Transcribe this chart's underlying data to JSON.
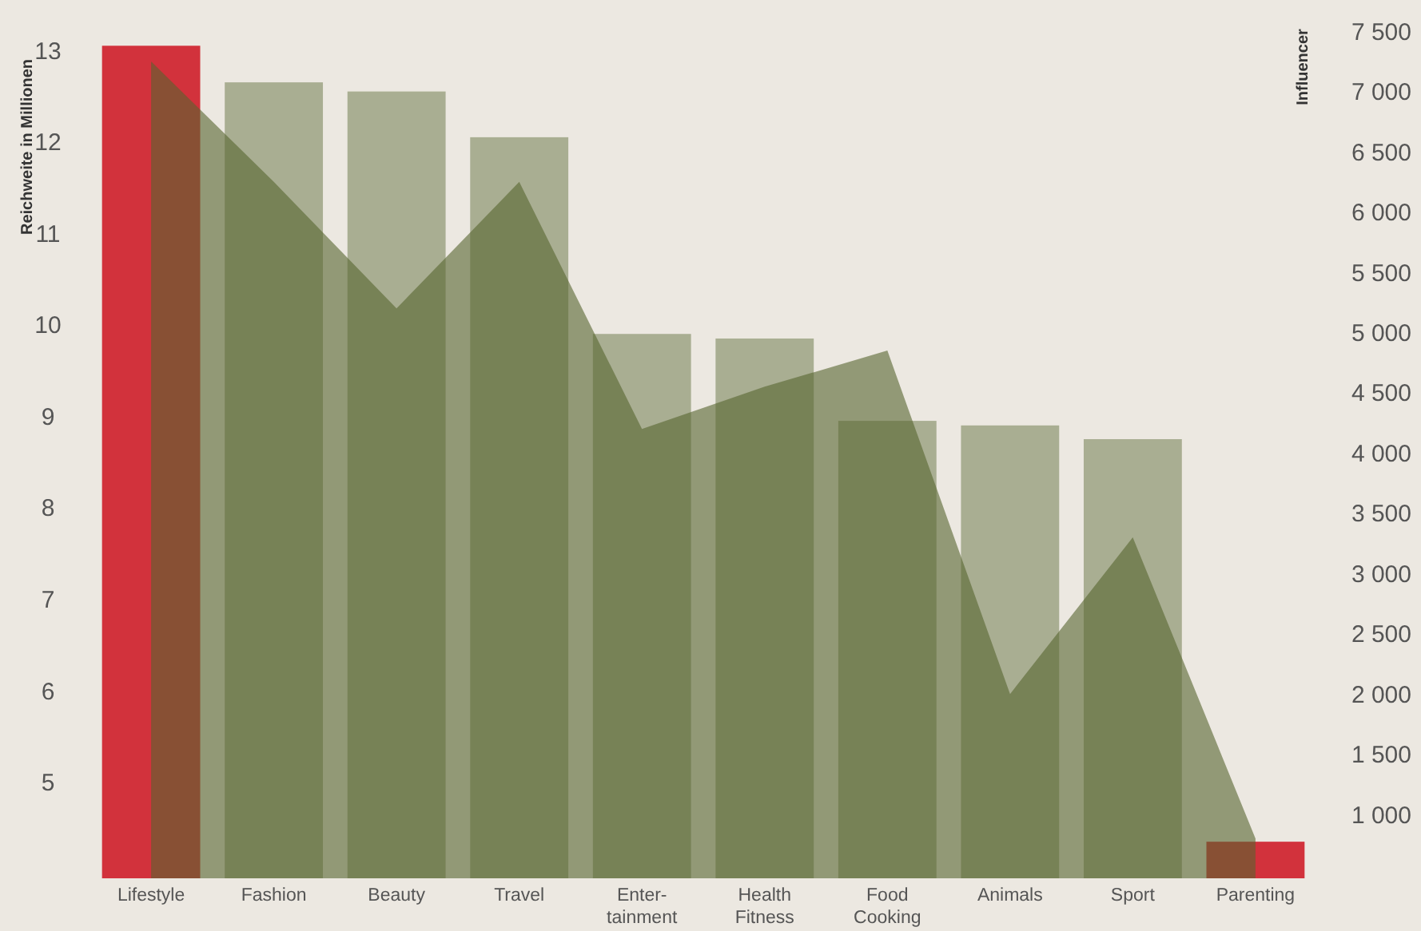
{
  "chart_data": {
    "type": "bar",
    "ylabel": "Reichweite in Millionen",
    "y2label": "Influencer",
    "categories": [
      "Lifestyle",
      "Fashion",
      "Beauty",
      "Travel",
      "Enter-\ntainment",
      "Health\nFitness",
      "Food\nCooking",
      "Animals",
      "Sport",
      "Parenting"
    ],
    "series": [
      {
        "colors": [
          "#d2323c",
          "#a9ae92",
          "#a9ae92",
          "#a9ae92",
          "#a9ae92",
          "#a9ae92",
          "#a9ae92",
          "#a9ae92",
          "#a9ae92",
          "#d2323c"
        ],
        "values": [
          13.05,
          12.65,
          12.55,
          12.05,
          9.9,
          9.85,
          8.95,
          8.9,
          8.75,
          4.35
        ]
      },
      {
        "type": "area",
        "axis": "y2",
        "color": "#56642f",
        "values": [
          7250,
          6250,
          5200,
          6250,
          4200,
          4550,
          4850,
          2000,
          3300,
          800
        ]
      }
    ],
    "ylim": [
      3.95,
      13.55
    ],
    "yticks": [
      5,
      6,
      7,
      8,
      9,
      10,
      11,
      12,
      13
    ],
    "y2lim": [
      470,
      7760
    ],
    "y2ticks": [
      {
        "value": 1000,
        "label": "1 000"
      },
      {
        "value": 1500,
        "label": "1 500"
      },
      {
        "value": 2000,
        "label": "2 000"
      },
      {
        "value": 2500,
        "label": "2 500"
      },
      {
        "value": 3000,
        "label": "3 000"
      },
      {
        "value": 3500,
        "label": "3 500"
      },
      {
        "value": 4000,
        "label": "4 000"
      },
      {
        "value": 4500,
        "label": "4 500"
      },
      {
        "value": 5000,
        "label": "5 000"
      },
      {
        "value": 5500,
        "label": "5 500"
      },
      {
        "value": 6000,
        "label": "6 000"
      },
      {
        "value": 6500,
        "label": "6 500"
      },
      {
        "value": 7000,
        "label": "7 000"
      },
      {
        "value": 7500,
        "label": "7 500"
      }
    ],
    "grid": false
  }
}
